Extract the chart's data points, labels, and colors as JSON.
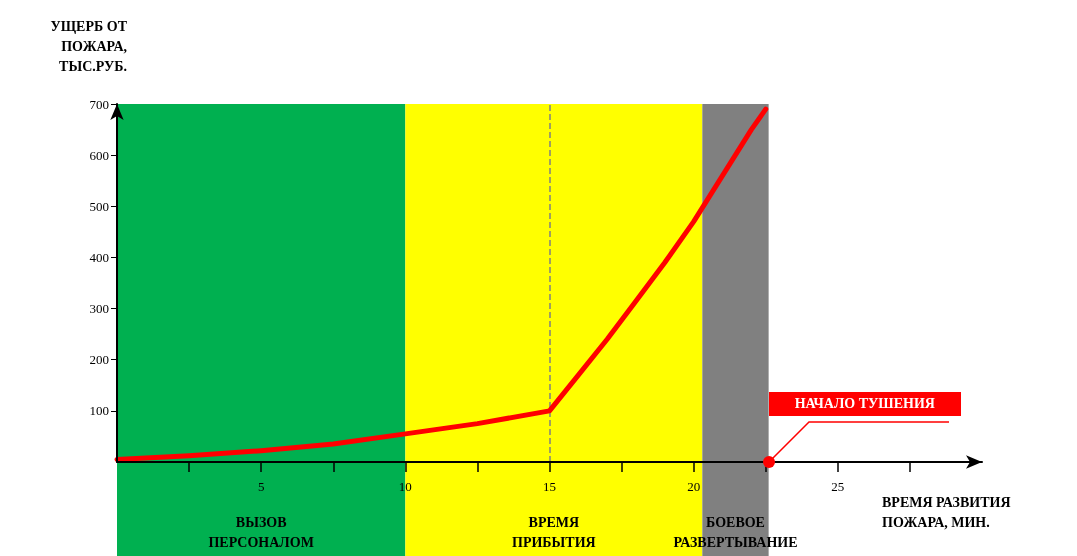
{
  "chart_data": {
    "type": "line",
    "xlabel": "ВРЕМЯ РАЗВИТИЯ\nПОЖАРА, МИН.",
    "ylabel": "УЩЕРБ ОТ\nПОЖАРА,\nТЫС.РУБ.",
    "x": [
      0,
      2.5,
      5,
      7.5,
      10,
      12.5,
      15,
      16,
      17,
      18,
      19,
      20,
      20.5,
      21,
      21.5,
      22,
      22.5
    ],
    "series": [
      {
        "color": "#ff0000",
        "values": [
          5,
          12,
          22,
          35,
          55,
          75,
          100,
          170,
          240,
          315,
          390,
          470,
          515,
          560,
          605,
          650,
          690
        ]
      }
    ],
    "xlim": [
      0,
      30
    ],
    "xticks": [
      {
        "value": 2.5,
        "label": null
      },
      5,
      {
        "value": 7.5,
        "label": null
      },
      10,
      {
        "value": 12.5,
        "label": null
      },
      15,
      {
        "value": 17.5,
        "label": null
      },
      20,
      {
        "value": 22.5,
        "label": null
      },
      25,
      {
        "value": 27.5,
        "label": null
      }
    ],
    "ylim": [
      0,
      700
    ],
    "yticks": [
      100,
      200,
      300,
      400,
      500,
      600,
      700
    ],
    "bands": [
      {
        "axis": "x",
        "from": 0,
        "to": 10,
        "label": "ВЫЗОВ\nПЕРСОНАЛОМ",
        "color": "#00b050"
      },
      {
        "axis": "x",
        "from": 10,
        "to": 20.3,
        "label": "ВРЕМЯ\nПРИБЫТИЯ",
        "color": "#ffff00"
      },
      {
        "axis": "x",
        "from": 20.3,
        "to": 22.6,
        "label": "БОЕВОЕ\nРАЗВЕРТЫВАНИЕ",
        "color": "#808080"
      }
    ],
    "ref_lines": [
      {
        "axis": "x",
        "value": 15,
        "label": null,
        "color": "#808080",
        "line_style": "dashed"
      }
    ],
    "annotations": [
      {
        "text": "НАЧАЛО ТУШЕНИЯ",
        "x": 22.6,
        "y": 0
      }
    ],
    "marker": "none",
    "line_style": "solid",
    "grid": false
  }
}
